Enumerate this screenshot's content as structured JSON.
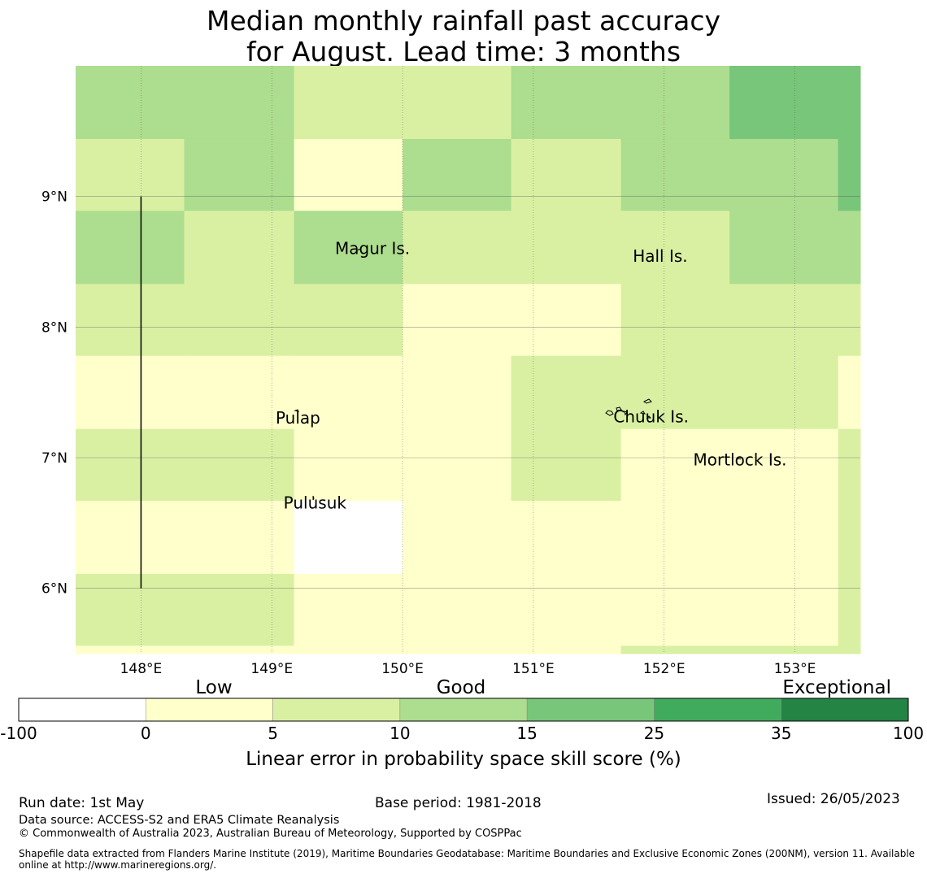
{
  "title": {
    "line1": "Median monthly rainfall past accuracy",
    "line2": "for August. Lead time: 3 months"
  },
  "map": {
    "lon_range": [
      147.5,
      153.5
    ],
    "lat_range": [
      5.5,
      10.0
    ],
    "lon_ticks": [
      {
        "value": 148,
        "label": "148°E"
      },
      {
        "value": 149,
        "label": "149°E"
      },
      {
        "value": 150,
        "label": "150°E"
      },
      {
        "value": 151,
        "label": "151°E"
      },
      {
        "value": 152,
        "label": "152°E"
      },
      {
        "value": 153,
        "label": "153°E"
      }
    ],
    "lat_ticks": [
      {
        "value": 9,
        "label": "9°N"
      },
      {
        "value": 8,
        "label": "8°N"
      },
      {
        "value": 7,
        "label": "7°N"
      },
      {
        "value": 6,
        "label": "6°N"
      }
    ],
    "grid": true,
    "cell_lons": [
      147.5,
      148.33,
      149.17,
      150.0,
      150.83,
      151.67,
      152.5,
      153.33,
      153.5
    ],
    "cell_lats": [
      10.0,
      9.44,
      8.89,
      8.33,
      7.78,
      7.22,
      6.67,
      6.11,
      5.56,
      5.5
    ],
    "cell_classes": [
      [
        3,
        3,
        2,
        2,
        3,
        3,
        4,
        4
      ],
      [
        2,
        3,
        1,
        3,
        2,
        3,
        3,
        4
      ],
      [
        3,
        2,
        3,
        2,
        2,
        2,
        3,
        3
      ],
      [
        2,
        2,
        2,
        1,
        1,
        2,
        2,
        2
      ],
      [
        1,
        1,
        1,
        1,
        2,
        2,
        2,
        1
      ],
      [
        2,
        2,
        1,
        1,
        2,
        1,
        1,
        2
      ],
      [
        1,
        1,
        0,
        1,
        1,
        1,
        1,
        2
      ],
      [
        2,
        2,
        1,
        1,
        1,
        1,
        1,
        2
      ],
      [
        1,
        1,
        1,
        1,
        1,
        2,
        2,
        2
      ]
    ],
    "places": [
      {
        "name": "Magur Is.",
        "lon": 149.77,
        "lat": 8.56
      },
      {
        "name": "Hall Is.",
        "lon": 151.97,
        "lat": 8.5
      },
      {
        "name": "Pulap",
        "lon": 149.2,
        "lat": 7.26
      },
      {
        "name": "Chuuk Is.",
        "lon": 151.9,
        "lat": 7.27
      },
      {
        "name": "Mortlock Is.",
        "lon": 152.58,
        "lat": 6.94
      },
      {
        "name": "Pulusuk",
        "lon": 149.33,
        "lat": 6.61
      }
    ],
    "boundary_line": {
      "lon": 148.0,
      "lat_from": 9.0,
      "lat_to": 6.0
    }
  },
  "legend": {
    "class_labels": [
      "Low",
      "Good",
      "Exceptional"
    ],
    "bins": [
      {
        "from": -100,
        "to": 0,
        "color": "#ffffff"
      },
      {
        "from": 0,
        "to": 5,
        "color": "#ffffcc"
      },
      {
        "from": 5,
        "to": 10,
        "color": "#d9f0a3"
      },
      {
        "from": 10,
        "to": 15,
        "color": "#addd8e"
      },
      {
        "from": 15,
        "to": 25,
        "color": "#78c679"
      },
      {
        "from": 25,
        "to": 35,
        "color": "#41ab5d"
      },
      {
        "from": 35,
        "to": 100,
        "color": "#238443"
      }
    ],
    "tick_labels": [
      "-100",
      "0",
      "5",
      "10",
      "15",
      "25",
      "35",
      "100"
    ],
    "axis_label": "Linear error in probability space skill score (%)"
  },
  "footer": {
    "run_date": "Run date: 1st May",
    "base_period": "Base period: 1981-2018",
    "issued": "Issued: 26/05/2023",
    "data_source": "Data source: ACCESS-S2 and ERA5 Climate Reanalysis",
    "copyright": "© Commonwealth of Australia 2023, Australian Bureau of Meteorology, Supported by COSPPac",
    "shapefile_line1": "Shapefile data extracted from Flanders Marine Institute (2019), Maritime Boundaries Geodatabase: Maritime Boundaries and Exclusive Economic Zones (200NM), version 11. Available",
    "shapefile_line2": "online at http://www.marineregions.org/."
  }
}
